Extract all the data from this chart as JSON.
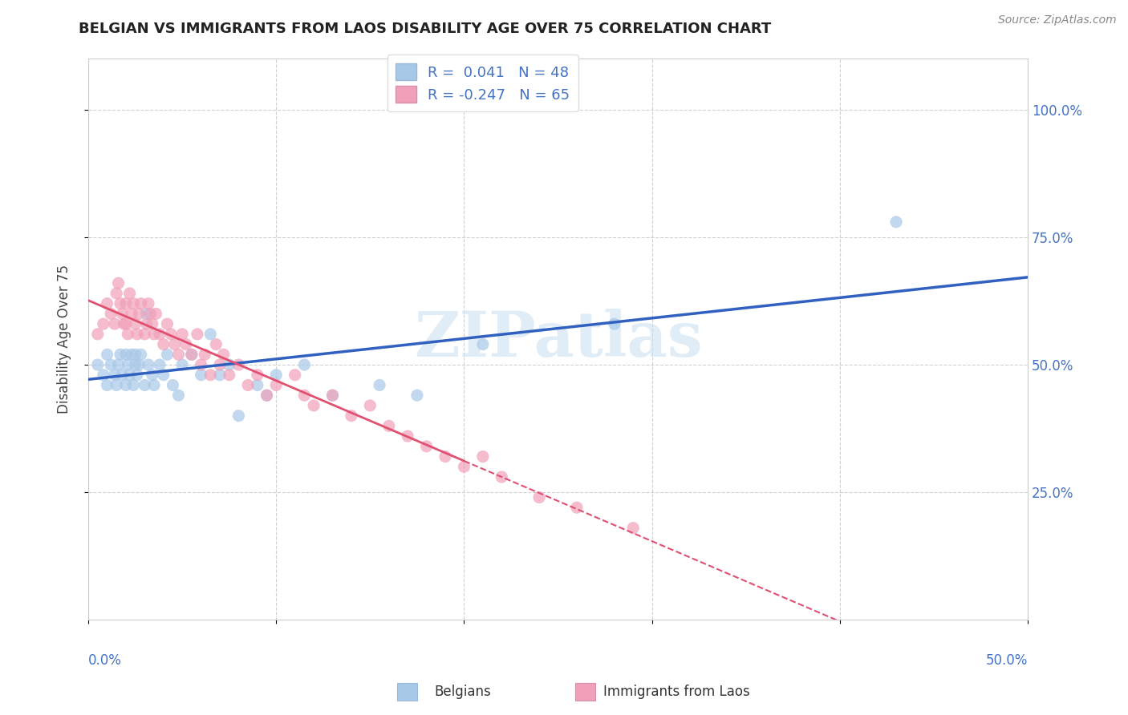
{
  "title": "BELGIAN VS IMMIGRANTS FROM LAOS DISABILITY AGE OVER 75 CORRELATION CHART",
  "source": "Source: ZipAtlas.com",
  "ylabel": "Disability Age Over 75",
  "yticks": [
    "25.0%",
    "50.0%",
    "75.0%",
    "100.0%"
  ],
  "ytick_vals": [
    0.25,
    0.5,
    0.75,
    1.0
  ],
  "xrange": [
    0.0,
    0.5
  ],
  "yrange": [
    0.0,
    1.1
  ],
  "blue_color": "#a8c8e8",
  "pink_color": "#f0a0b8",
  "blue_line_color": "#3060c0",
  "pink_line_color": "#e05070",
  "watermark": "ZIPatlas",
  "belgians_x": [
    0.005,
    0.008,
    0.01,
    0.01,
    0.012,
    0.014,
    0.015,
    0.016,
    0.017,
    0.018,
    0.02,
    0.02,
    0.021,
    0.022,
    0.023,
    0.024,
    0.025,
    0.025,
    0.026,
    0.027,
    0.028,
    0.03,
    0.031,
    0.032,
    0.034,
    0.035,
    0.038,
    0.04,
    0.042,
    0.045,
    0.048,
    0.05,
    0.055,
    0.06,
    0.065,
    0.07,
    0.075,
    0.08,
    0.09,
    0.095,
    0.1,
    0.115,
    0.13,
    0.155,
    0.175,
    0.21,
    0.28,
    0.43
  ],
  "belgians_y": [
    0.5,
    0.48,
    0.52,
    0.46,
    0.5,
    0.48,
    0.46,
    0.5,
    0.52,
    0.48,
    0.52,
    0.46,
    0.5,
    0.48,
    0.52,
    0.46,
    0.5,
    0.52,
    0.48,
    0.5,
    0.52,
    0.46,
    0.6,
    0.5,
    0.48,
    0.46,
    0.5,
    0.48,
    0.52,
    0.46,
    0.44,
    0.5,
    0.52,
    0.48,
    0.56,
    0.48,
    0.5,
    0.4,
    0.46,
    0.44,
    0.48,
    0.5,
    0.44,
    0.46,
    0.44,
    0.54,
    0.58,
    0.78
  ],
  "laos_x": [
    0.005,
    0.008,
    0.01,
    0.012,
    0.014,
    0.015,
    0.016,
    0.017,
    0.018,
    0.019,
    0.02,
    0.02,
    0.021,
    0.022,
    0.023,
    0.024,
    0.025,
    0.026,
    0.027,
    0.028,
    0.03,
    0.031,
    0.032,
    0.033,
    0.034,
    0.035,
    0.036,
    0.038,
    0.04,
    0.042,
    0.044,
    0.046,
    0.048,
    0.05,
    0.052,
    0.055,
    0.058,
    0.06,
    0.062,
    0.065,
    0.068,
    0.07,
    0.072,
    0.075,
    0.08,
    0.085,
    0.09,
    0.095,
    0.1,
    0.11,
    0.115,
    0.12,
    0.13,
    0.14,
    0.15,
    0.16,
    0.17,
    0.18,
    0.19,
    0.2,
    0.21,
    0.22,
    0.24,
    0.26,
    0.29
  ],
  "laos_y": [
    0.56,
    0.58,
    0.62,
    0.6,
    0.58,
    0.64,
    0.66,
    0.62,
    0.6,
    0.58,
    0.58,
    0.62,
    0.56,
    0.64,
    0.6,
    0.62,
    0.58,
    0.56,
    0.6,
    0.62,
    0.56,
    0.58,
    0.62,
    0.6,
    0.58,
    0.56,
    0.6,
    0.56,
    0.54,
    0.58,
    0.56,
    0.54,
    0.52,
    0.56,
    0.54,
    0.52,
    0.56,
    0.5,
    0.52,
    0.48,
    0.54,
    0.5,
    0.52,
    0.48,
    0.5,
    0.46,
    0.48,
    0.44,
    0.46,
    0.48,
    0.44,
    0.42,
    0.44,
    0.4,
    0.42,
    0.38,
    0.36,
    0.34,
    0.32,
    0.3,
    0.32,
    0.28,
    0.24,
    0.22,
    0.18
  ],
  "r_blue": 0.041,
  "r_pink": -0.247,
  "n_blue": 48,
  "n_pink": 65
}
